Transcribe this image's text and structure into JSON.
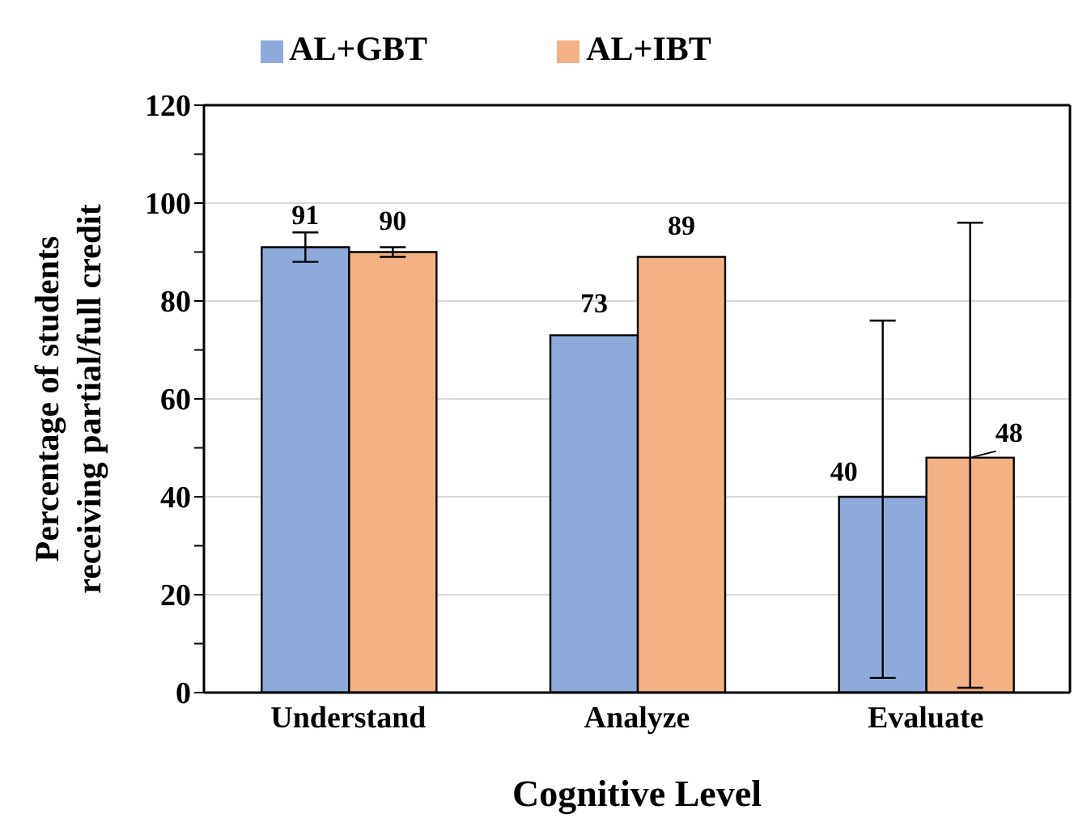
{
  "chart_data": {
    "type": "bar",
    "xlabel": "Cognitive Level",
    "ylabel": "Percentage of students receiving partial/full credit",
    "categories": [
      "Understand",
      "Analyze",
      "Evaluate"
    ],
    "series": [
      {
        "name": "AL+GBT",
        "color": "#8eaadb",
        "values": [
          91,
          73,
          40
        ],
        "errors": [
          [
            88,
            94
          ],
          null,
          [
            3,
            76
          ]
        ]
      },
      {
        "name": "AL+IBT",
        "color": "#f4b183",
        "values": [
          90,
          89,
          48
        ],
        "errors": [
          [
            89,
            91
          ],
          null,
          [
            1,
            96
          ]
        ]
      }
    ],
    "ylim": [
      0,
      120
    ],
    "yticks": [
      0,
      {
        "value": 10,
        "label": null
      },
      20,
      {
        "value": 30,
        "label": null
      },
      40,
      {
        "value": 50,
        "label": null
      },
      60,
      {
        "value": 70,
        "label": null
      },
      80,
      {
        "value": 90,
        "label": null
      },
      100,
      {
        "value": 110,
        "label": null
      },
      120
    ],
    "grid": "y",
    "legend": "top",
    "data_labels": true
  }
}
